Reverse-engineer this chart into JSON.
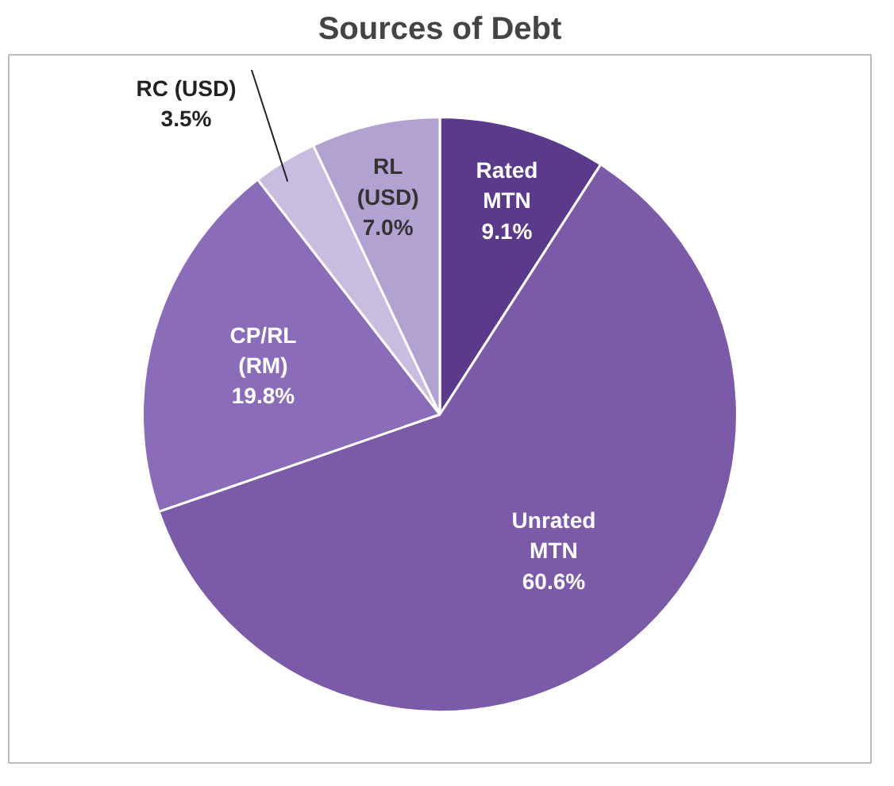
{
  "chart_data": {
    "type": "pie",
    "title": "Sources of Debt",
    "categories": [
      "Rated MTN",
      "Unrated MTN",
      "CP/RL (RM)",
      "RC (USD)",
      "RL (USD)"
    ],
    "values": [
      9.1,
      60.6,
      19.8,
      3.5,
      7.0
    ],
    "colors": [
      "#5b3a8c",
      "#7b5aa8",
      "#8b6cb8",
      "#c8bde0",
      "#b2a2d2"
    ],
    "value_labels": [
      "9.1%",
      "60.6%",
      "19.8%",
      "3.5%",
      "7.0%"
    ]
  }
}
